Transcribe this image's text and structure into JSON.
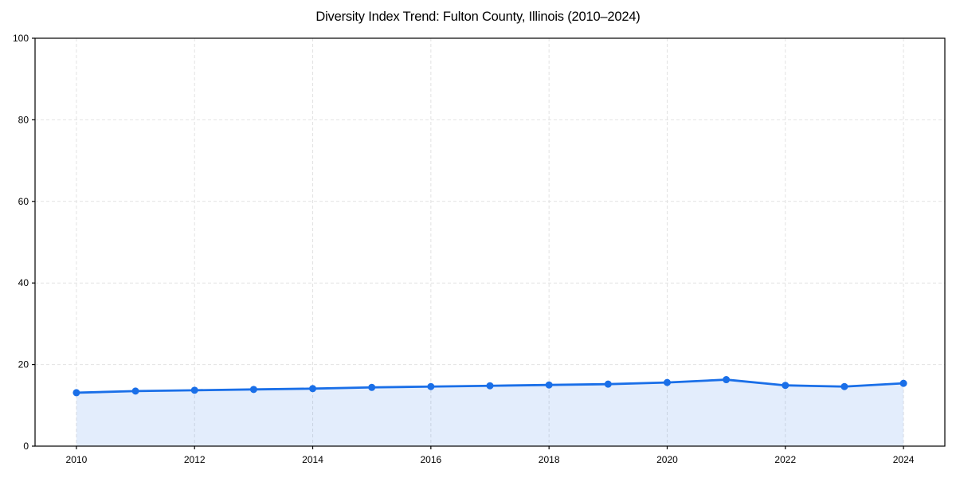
{
  "chart_data": {
    "type": "line",
    "title": "Diversity Index Trend: Fulton County, Illinois (2010–2024)",
    "x": [
      2010,
      2011,
      2012,
      2013,
      2014,
      2015,
      2016,
      2017,
      2018,
      2019,
      2020,
      2021,
      2022,
      2023,
      2024
    ],
    "series": [
      {
        "name": "Diversity Index",
        "values": [
          13.1,
          13.5,
          13.7,
          13.9,
          14.1,
          14.4,
          14.6,
          14.8,
          15.0,
          15.2,
          15.6,
          16.3,
          14.9,
          14.6,
          15.4
        ]
      }
    ],
    "xticks": [
      2010,
      2012,
      2014,
      2016,
      2018,
      2020,
      2022,
      2024
    ],
    "yticks": [
      0,
      20,
      40,
      60,
      80,
      100
    ],
    "ylim": [
      0,
      100
    ],
    "xlabel": "",
    "ylabel": "",
    "grid": "dashed",
    "legend": "none",
    "marker": "circle",
    "area_fill": true,
    "fill_opacity": 0.12,
    "colors": {
      "line": "#1a6fe8",
      "marker": "#1a6fe8",
      "fill_base": "#1a6fe8",
      "grid": "#e2e2e2",
      "spine": "#000000",
      "text": "#000000",
      "background": "#ffffff"
    }
  }
}
